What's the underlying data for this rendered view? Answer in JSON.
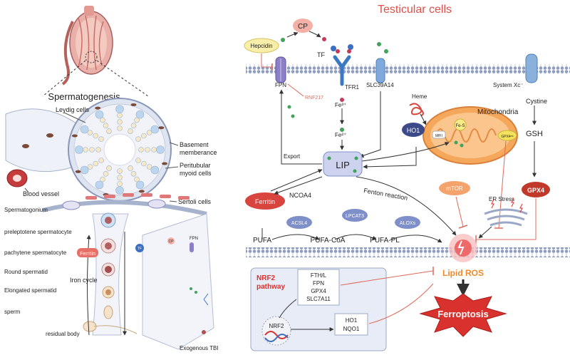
{
  "left": {
    "section_title": "Spermatogenesis",
    "labels": {
      "leydig": "Leydig cells",
      "basement": "Basement",
      "memberance": "memberance",
      "peritubular": "Peritubular",
      "myoid": "myoid cells",
      "blood_vessel": "Blood vessel",
      "sertoli": "Sertoli cells",
      "spermatogonium": "Spermatogonium",
      "preleptotene": "preleptotene spermatocyte",
      "pachytene": "pachytene spermatocyte",
      "round": "Round spermatid",
      "elongated": "Elongated spermatid",
      "sperm": "sperm",
      "residual": "residual body",
      "iron_cycle": "Iron cycle",
      "ferritin": "Ferritin",
      "tf": "TF",
      "cp": "CP",
      "fpn": "FPN",
      "exogenous": "Exogenous TBI"
    }
  },
  "right": {
    "title": "Testicular cells",
    "labels": {
      "cp": "CP",
      "hepcidin": "Hepcidin",
      "tf": "TF",
      "fpn": "FPN",
      "rnf217": "RNF217",
      "tfr1": "TFR1",
      "slc39a14": "SLC39A14",
      "system_xc": "System Xc⁻",
      "heme": "Heme",
      "mitochondria": "Mitochondria",
      "mfi": "MfFI",
      "fes": "Fe-S",
      "gpx4m": "GPX4ᵐᵗ",
      "cystine": "Cystine",
      "gsh": "GSH",
      "fe3": "Fe³⁺",
      "fe2": "Fe²⁺",
      "ho1": "HO1",
      "export": "Export",
      "lip": "LIP",
      "ferritin": "Ferritin",
      "ncoa4": "NCOA4",
      "fenton": "Fenton reaction",
      "mtor": "mTOR",
      "er_stress": "ER Stress",
      "gpx4": "GPX4",
      "acsl4": "ACSL4",
      "lpcat3": "LPCAT3",
      "aloxs": "ALOXs",
      "pufa": "PUFA",
      "pufa_coa": "PUFA-CoA",
      "pufa_pl": "PUFA-PL",
      "lipid_ros": "Lipid ROS",
      "nrf2_pathway_1": "NRF2",
      "nrf2_pathway_2": "pathway",
      "gene_1": "FTH/L",
      "gene_2": "FPN",
      "gene_3": "GPX4",
      "gene_4": "SLC7A11",
      "nrf2": "NRF2",
      "ho1_b": "HO1",
      "nqo1": "NQO1",
      "ferroptosis": "Ferroptosis"
    }
  },
  "colors": {
    "title_red": "#e0504a",
    "membrane": "#9aa8c6",
    "iron_green": "#3fa35b",
    "ferritin_red": "#d8453f",
    "enzyme_blue": "#7f8fc9",
    "mito_orange": "#f2a55a",
    "lip_fill": "#cdd3ef",
    "inhibit_red": "#e06a5a",
    "ferroptosis_red": "#d9322e",
    "nrf2_box": "#e8ecf7"
  }
}
